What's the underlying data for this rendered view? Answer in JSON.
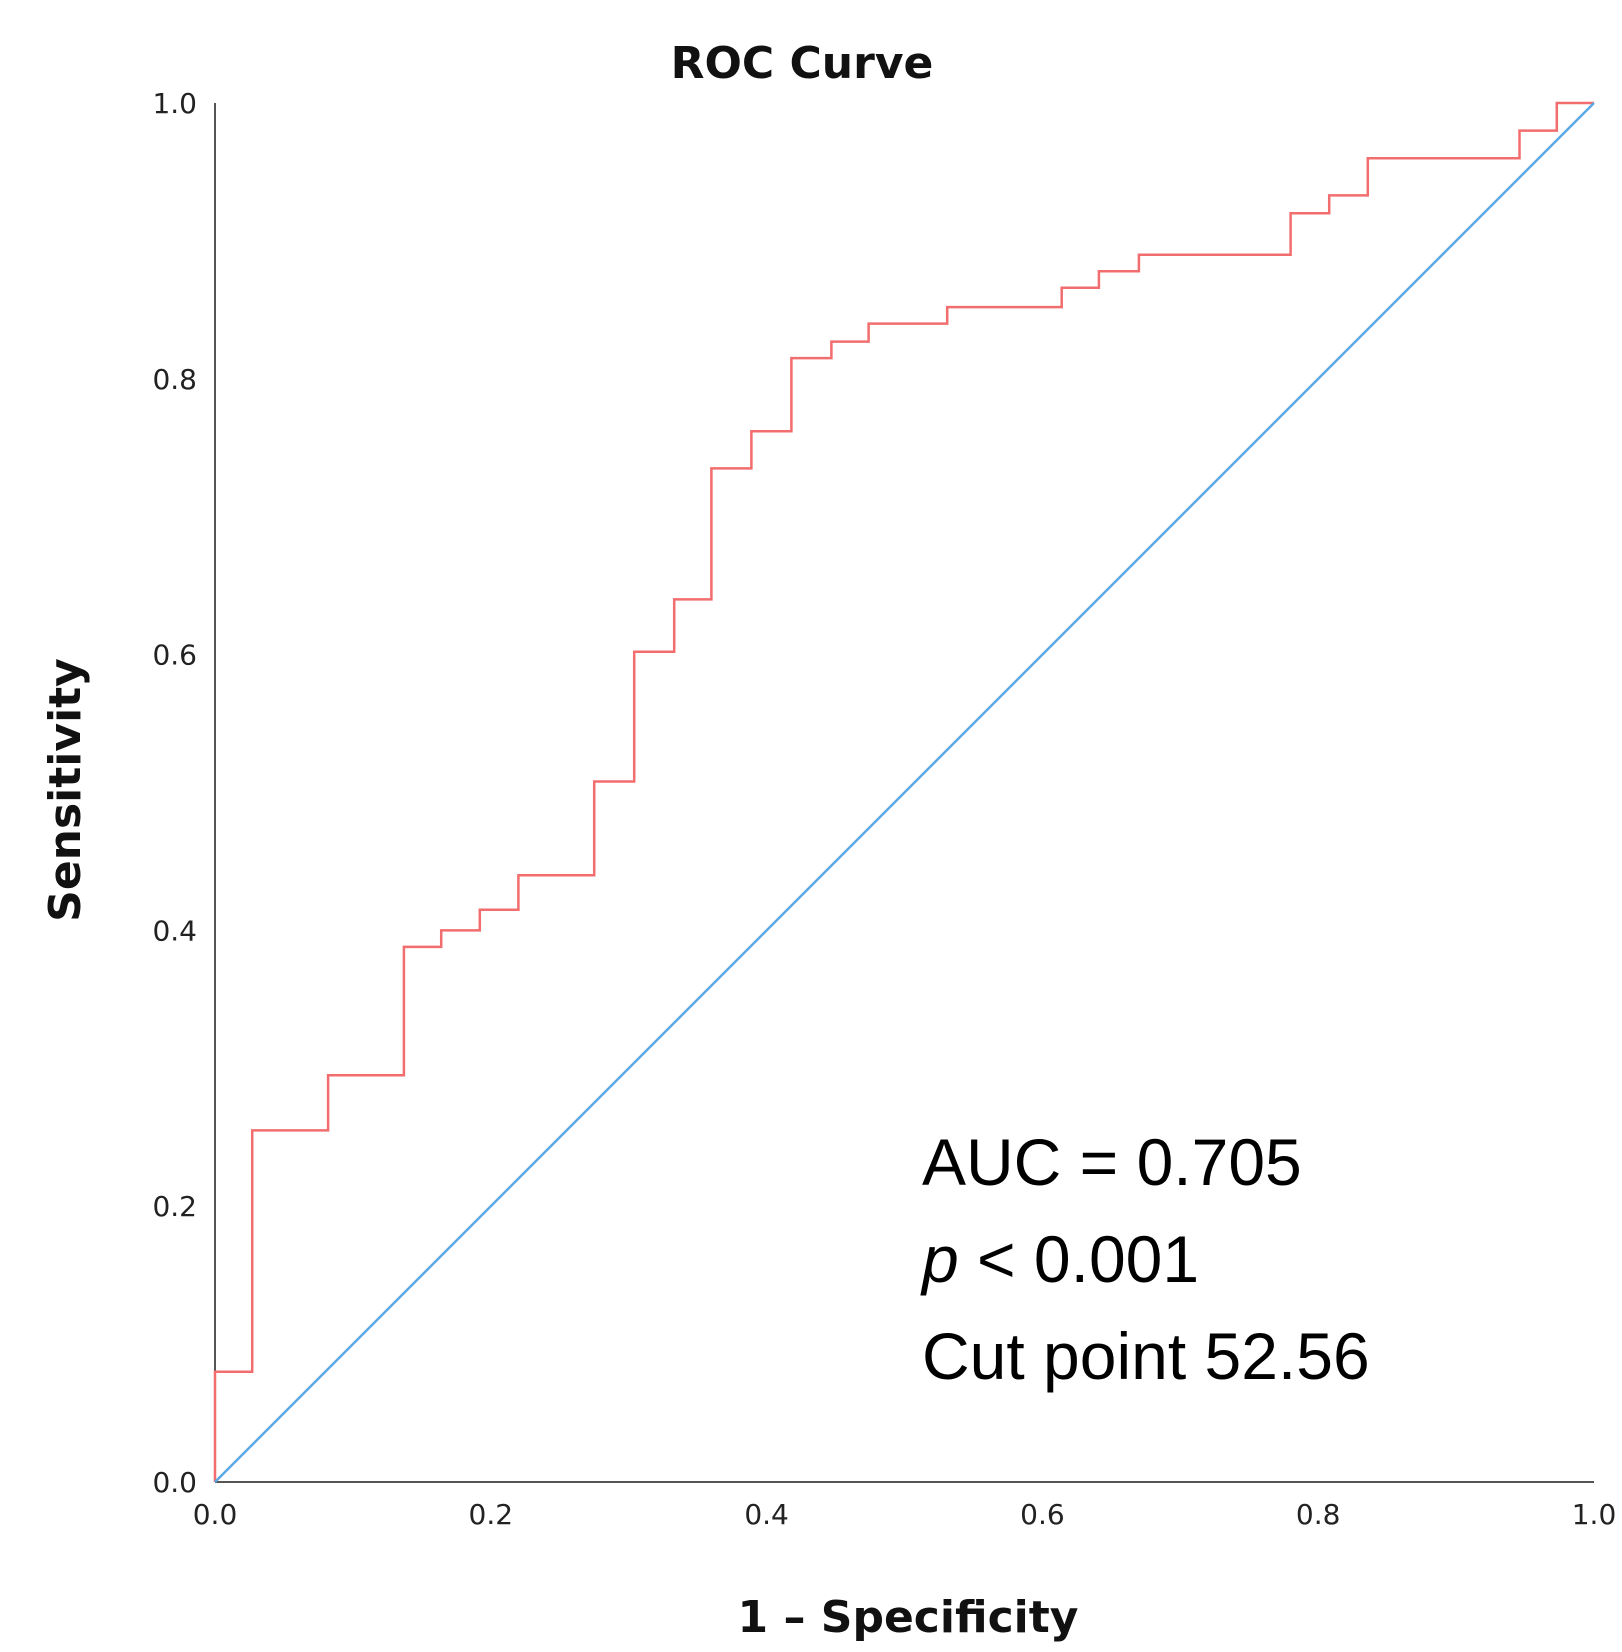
{
  "chart_data": {
    "type": "line",
    "title": "ROC Curve",
    "xlabel": "1 – Specificity",
    "ylabel": "Sensitivity",
    "xlim": [
      0,
      1
    ],
    "ylim": [
      0,
      1
    ],
    "xticks": [
      "0.0",
      "0.2",
      "0.4",
      "0.6",
      "0.8",
      "1.0"
    ],
    "yticks": [
      "0.0",
      "0.2",
      "0.4",
      "0.6",
      "0.8",
      "1.0"
    ],
    "grid": false,
    "legend": "none",
    "series": [
      {
        "color": "#f26d6d",
        "style": "step",
        "points": [
          [
            0.0,
            0.0
          ],
          [
            0.0,
            0.08
          ],
          [
            0.027,
            0.08
          ],
          [
            0.027,
            0.255
          ],
          [
            0.082,
            0.255
          ],
          [
            0.082,
            0.295
          ],
          [
            0.137,
            0.295
          ],
          [
            0.137,
            0.388
          ],
          [
            0.164,
            0.388
          ],
          [
            0.164,
            0.4
          ],
          [
            0.192,
            0.4
          ],
          [
            0.192,
            0.415
          ],
          [
            0.22,
            0.415
          ],
          [
            0.22,
            0.44
          ],
          [
            0.275,
            0.44
          ],
          [
            0.275,
            0.508
          ],
          [
            0.304,
            0.508
          ],
          [
            0.304,
            0.602
          ],
          [
            0.333,
            0.602
          ],
          [
            0.333,
            0.64
          ],
          [
            0.36,
            0.64
          ],
          [
            0.36,
            0.735
          ],
          [
            0.389,
            0.735
          ],
          [
            0.389,
            0.762
          ],
          [
            0.418,
            0.762
          ],
          [
            0.418,
            0.815
          ],
          [
            0.447,
            0.815
          ],
          [
            0.447,
            0.827
          ],
          [
            0.474,
            0.827
          ],
          [
            0.474,
            0.84
          ],
          [
            0.531,
            0.84
          ],
          [
            0.531,
            0.852
          ],
          [
            0.614,
            0.852
          ],
          [
            0.614,
            0.866
          ],
          [
            0.641,
            0.866
          ],
          [
            0.641,
            0.878
          ],
          [
            0.67,
            0.878
          ],
          [
            0.67,
            0.89
          ],
          [
            0.78,
            0.89
          ],
          [
            0.78,
            0.92
          ],
          [
            0.808,
            0.92
          ],
          [
            0.808,
            0.933
          ],
          [
            0.836,
            0.933
          ],
          [
            0.836,
            0.96
          ],
          [
            0.946,
            0.96
          ],
          [
            0.946,
            0.98
          ],
          [
            0.973,
            0.98
          ],
          [
            0.973,
            1.0
          ],
          [
            1.0,
            1.0
          ]
        ]
      },
      {
        "color": "#5aa9e6",
        "style": "line",
        "points": [
          [
            0.0,
            0.0
          ],
          [
            1.0,
            1.0
          ]
        ]
      }
    ],
    "annotations": [
      {
        "label": "AUC = 0.705"
      },
      {
        "label_italic": "p",
        "label": " < 0.001"
      },
      {
        "label": "Cut point 52.56"
      }
    ]
  }
}
